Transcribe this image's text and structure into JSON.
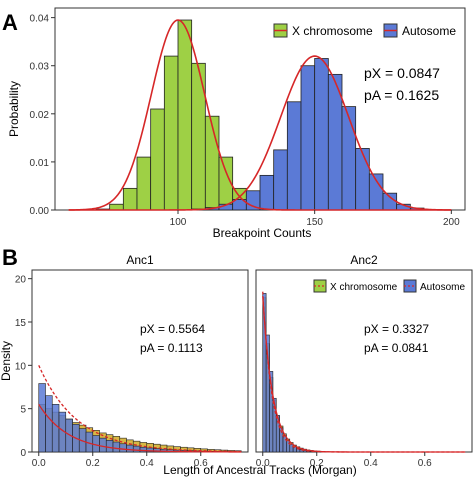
{
  "panels": [
    {
      "letter": "A",
      "xlabel": "Breakpoint Counts",
      "ylabel": "Probability",
      "legend": {
        "x_label": "X chromosome",
        "auto_label": "Autosome"
      },
      "annotations": [
        "pX = 0.0847",
        "pA = 0.1625"
      ]
    },
    {
      "letter": "B",
      "xlabel": "Length of Ancestral Tracks (Morgan)",
      "ylabel": "Density",
      "legend": {
        "x_label": "X chromosome",
        "auto_label": "Autosome"
      },
      "facets": [
        {
          "title": "Anc1",
          "annotations": [
            "pX = 0.5564",
            "pA = 0.1113"
          ]
        },
        {
          "title": "Anc2",
          "annotations": [
            "pX = 0.3327",
            "pA = 0.0841"
          ]
        }
      ]
    }
  ],
  "colors": {
    "x_fill": "#9ed045",
    "auto_fill": "#5b7ad6",
    "fit_line": "#d62728",
    "panel_border": "#333333"
  },
  "chart_data": [
    {
      "type": "bar",
      "panel": "A",
      "xlim": [
        55,
        205
      ],
      "ylim": [
        0,
        0.042
      ],
      "xticks": [
        100,
        150,
        200
      ],
      "yticks": [
        0.0,
        0.01,
        0.02,
        0.03,
        0.04
      ],
      "yticklabels": [
        "0.00",
        "0.01",
        "0.02",
        "0.03",
        "0.04"
      ],
      "series": [
        {
          "name": "X chromosome",
          "bins": [
            [
              70,
              75,
              0.0002
            ],
            [
              75,
              80,
              0.0012
            ],
            [
              80,
              85,
              0.0045
            ],
            [
              85,
              90,
              0.011
            ],
            [
              90,
              95,
              0.021
            ],
            [
              95,
              100,
              0.032
            ],
            [
              100,
              105,
              0.0395
            ],
            [
              105,
              110,
              0.0305
            ],
            [
              110,
              115,
              0.0195
            ],
            [
              115,
              120,
              0.011
            ],
            [
              120,
              125,
              0.0045
            ],
            [
              125,
              130,
              0.0015
            ],
            [
              130,
              135,
              0.0004
            ]
          ]
        },
        {
          "name": "Autosome",
          "bins": [
            [
              105,
              110,
              0.0002
            ],
            [
              110,
              115,
              0.0005
            ],
            [
              115,
              120,
              0.0012
            ],
            [
              120,
              125,
              0.0022
            ],
            [
              125,
              130,
              0.004
            ],
            [
              130,
              135,
              0.0072
            ],
            [
              135,
              140,
              0.0125
            ],
            [
              140,
              145,
              0.0225
            ],
            [
              145,
              150,
              0.03
            ],
            [
              150,
              155,
              0.0315
            ],
            [
              155,
              160,
              0.0282
            ],
            [
              160,
              165,
              0.0215
            ],
            [
              165,
              170,
              0.0128
            ],
            [
              170,
              175,
              0.0075
            ],
            [
              175,
              180,
              0.0035
            ],
            [
              180,
              185,
              0.0012
            ],
            [
              185,
              190,
              0.0004
            ]
          ]
        }
      ],
      "fit": {
        "x_mean": 100,
        "x_sd": 9.8,
        "x_peak": 0.0395,
        "auto_mean": 150,
        "auto_sd": 12.4,
        "auto_peak": 0.032
      }
    },
    {
      "type": "bar",
      "panel": "B",
      "facet": "Anc1",
      "xlim": [
        -0.025,
        0.775
      ],
      "ylim": [
        0,
        21
      ],
      "xticks": [
        0.0,
        0.2,
        0.4,
        0.6
      ],
      "yticks": [
        0,
        5,
        10,
        15,
        20
      ],
      "bin_width": 0.025,
      "series": [
        {
          "name": "X chromosome",
          "values": [
            5.5,
            5.0,
            4.6,
            4.2,
            3.8,
            3.4,
            3.1,
            2.8,
            2.5,
            2.2,
            2.0,
            1.8,
            1.6,
            1.4,
            1.25,
            1.1,
            1.0,
            0.9,
            0.8,
            0.7,
            0.62,
            0.55,
            0.48,
            0.42,
            0.36,
            0.3,
            0.26,
            0.22,
            0.18,
            0.15
          ]
        },
        {
          "name": "Autosome",
          "values": [
            7.9,
            6.5,
            5.5,
            4.6,
            3.8,
            3.2,
            2.7,
            2.3,
            1.9,
            1.6,
            1.35,
            1.15,
            0.95,
            0.8,
            0.68,
            0.55,
            0.46,
            0.38,
            0.32,
            0.26,
            0.22,
            0.18,
            0.15,
            0.12,
            0.1,
            0.08,
            0.06,
            0.05,
            0.04,
            0.03
          ]
        }
      ],
      "fit": {
        "x_start": 5.5,
        "x_rate": 9.0,
        "auto_start": 10.0,
        "auto_rate": 7.0
      }
    },
    {
      "type": "bar",
      "panel": "B",
      "facet": "Anc2",
      "xlim": [
        -0.025,
        0.775
      ],
      "ylim": [
        0,
        21
      ],
      "xticks": [
        0.0,
        0.2,
        0.4,
        0.6
      ],
      "bin_width": 0.0125,
      "series": [
        {
          "name": "X chromosome",
          "values": [
            17.8,
            12.5,
            8.6,
            6.0,
            4.2,
            3.0,
            2.1,
            1.5,
            1.1,
            0.8,
            0.6,
            0.45,
            0.33,
            0.24,
            0.18,
            0.13,
            0.1,
            0.07
          ]
        },
        {
          "name": "Autosome",
          "values": [
            18.3,
            13.5,
            9.3,
            6.2,
            4.2,
            2.8,
            1.9,
            1.3,
            0.9,
            0.6,
            0.4,
            0.27,
            0.18,
            0.12,
            0.08,
            0.05,
            0.03,
            0.02
          ]
        }
      ],
      "fit": {
        "x_start": 18.0,
        "x_rate": 27.0,
        "auto_start": 18.5,
        "auto_rate": 30.0
      }
    }
  ]
}
